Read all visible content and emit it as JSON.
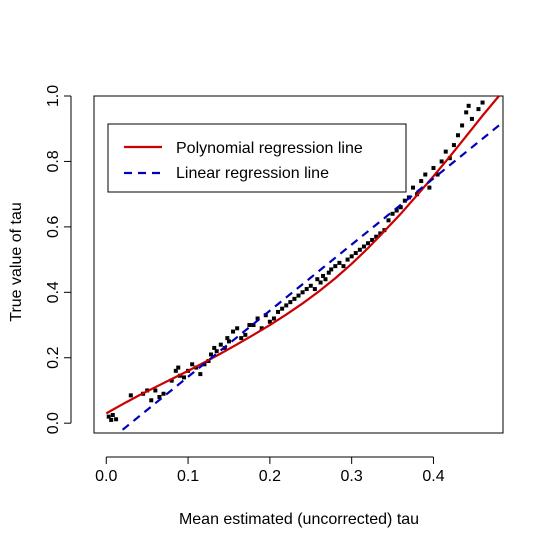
{
  "chart_data": {
    "type": "scatter",
    "title": "",
    "xlabel": "Mean estimated (uncorrected) tau",
    "ylabel": "True value of tau",
    "xlim": [
      -0.015,
      0.485
    ],
    "ylim": [
      -0.03,
      1.0
    ],
    "x_ticks": [
      0.0,
      0.1,
      0.2,
      0.3,
      0.4
    ],
    "x_tick_labels": [
      "0.0",
      "0.1",
      "0.2",
      "0.3",
      "0.4"
    ],
    "y_ticks": [
      0.0,
      0.2,
      0.4,
      0.6,
      0.8,
      1.0
    ],
    "y_tick_labels": [
      "0.0",
      "0.2",
      "0.4",
      "0.6",
      "0.8",
      "1.0"
    ],
    "grid": false,
    "legend_position": "top-left",
    "colors": {
      "points": "#000000",
      "polynomial": "#cc0000",
      "linear": "#0000bb"
    },
    "points": [
      [
        0.003,
        0.02
      ],
      [
        0.006,
        0.01
      ],
      [
        0.008,
        0.025
      ],
      [
        0.012,
        0.012
      ],
      [
        0.03,
        0.085
      ],
      [
        0.045,
        0.09
      ],
      [
        0.05,
        0.1
      ],
      [
        0.055,
        0.07
      ],
      [
        0.06,
        0.1
      ],
      [
        0.065,
        0.08
      ],
      [
        0.07,
        0.09
      ],
      [
        0.08,
        0.13
      ],
      [
        0.085,
        0.16
      ],
      [
        0.088,
        0.17
      ],
      [
        0.09,
        0.145
      ],
      [
        0.095,
        0.14
      ],
      [
        0.1,
        0.16
      ],
      [
        0.105,
        0.18
      ],
      [
        0.11,
        0.17
      ],
      [
        0.115,
        0.15
      ],
      [
        0.12,
        0.18
      ],
      [
        0.125,
        0.19
      ],
      [
        0.128,
        0.21
      ],
      [
        0.132,
        0.23
      ],
      [
        0.135,
        0.22
      ],
      [
        0.14,
        0.24
      ],
      [
        0.145,
        0.23
      ],
      [
        0.148,
        0.26
      ],
      [
        0.15,
        0.25
      ],
      [
        0.155,
        0.28
      ],
      [
        0.16,
        0.29
      ],
      [
        0.165,
        0.26
      ],
      [
        0.17,
        0.27
      ],
      [
        0.175,
        0.3
      ],
      [
        0.18,
        0.3
      ],
      [
        0.185,
        0.32
      ],
      [
        0.19,
        0.29
      ],
      [
        0.195,
        0.33
      ],
      [
        0.2,
        0.31
      ],
      [
        0.205,
        0.32
      ],
      [
        0.21,
        0.34
      ],
      [
        0.215,
        0.35
      ],
      [
        0.22,
        0.36
      ],
      [
        0.225,
        0.37
      ],
      [
        0.23,
        0.38
      ],
      [
        0.235,
        0.39
      ],
      [
        0.24,
        0.4
      ],
      [
        0.245,
        0.41
      ],
      [
        0.25,
        0.42
      ],
      [
        0.255,
        0.41
      ],
      [
        0.258,
        0.44
      ],
      [
        0.262,
        0.43
      ],
      [
        0.265,
        0.45
      ],
      [
        0.268,
        0.44
      ],
      [
        0.272,
        0.46
      ],
      [
        0.275,
        0.47
      ],
      [
        0.28,
        0.48
      ],
      [
        0.285,
        0.49
      ],
      [
        0.29,
        0.48
      ],
      [
        0.295,
        0.5
      ],
      [
        0.3,
        0.51
      ],
      [
        0.305,
        0.52
      ],
      [
        0.31,
        0.53
      ],
      [
        0.315,
        0.54
      ],
      [
        0.32,
        0.55
      ],
      [
        0.325,
        0.56
      ],
      [
        0.33,
        0.57
      ],
      [
        0.335,
        0.58
      ],
      [
        0.34,
        0.59
      ],
      [
        0.345,
        0.62
      ],
      [
        0.35,
        0.64
      ],
      [
        0.355,
        0.65
      ],
      [
        0.36,
        0.66
      ],
      [
        0.365,
        0.68
      ],
      [
        0.37,
        0.69
      ],
      [
        0.375,
        0.72
      ],
      [
        0.38,
        0.7
      ],
      [
        0.385,
        0.74
      ],
      [
        0.39,
        0.76
      ],
      [
        0.395,
        0.72
      ],
      [
        0.4,
        0.78
      ],
      [
        0.405,
        0.76
      ],
      [
        0.41,
        0.8
      ],
      [
        0.415,
        0.83
      ],
      [
        0.42,
        0.81
      ],
      [
        0.425,
        0.85
      ],
      [
        0.43,
        0.88
      ],
      [
        0.435,
        0.91
      ],
      [
        0.44,
        0.95
      ],
      [
        0.443,
        0.97
      ],
      [
        0.447,
        0.93
      ],
      [
        0.455,
        0.96
      ],
      [
        0.46,
        0.98
      ]
    ],
    "series": [
      {
        "name": "Polynomial regression line",
        "style": "solid",
        "x": [
          0.0,
          0.02,
          0.04,
          0.06,
          0.08,
          0.1,
          0.12,
          0.14,
          0.16,
          0.18,
          0.2,
          0.22,
          0.24,
          0.26,
          0.28,
          0.3,
          0.32,
          0.34,
          0.36,
          0.38,
          0.4,
          0.42,
          0.44,
          0.46,
          0.48
        ],
        "y": [
          0.03,
          0.058,
          0.085,
          0.11,
          0.135,
          0.16,
          0.186,
          0.213,
          0.241,
          0.27,
          0.3,
          0.332,
          0.366,
          0.403,
          0.443,
          0.487,
          0.535,
          0.587,
          0.64,
          0.697,
          0.755,
          0.815,
          0.877,
          0.94,
          1.0
        ]
      },
      {
        "name": "Linear regression line",
        "style": "dashed",
        "x": [
          0.02,
          0.485
        ],
        "y": [
          -0.02,
          0.92
        ]
      }
    ]
  }
}
